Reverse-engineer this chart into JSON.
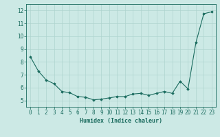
{
  "x": [
    0,
    1,
    2,
    3,
    4,
    5,
    6,
    7,
    8,
    9,
    10,
    11,
    12,
    13,
    14,
    15,
    16,
    17,
    18,
    19,
    20,
    21,
    22,
    23
  ],
  "y": [
    8.4,
    7.3,
    6.6,
    6.3,
    5.7,
    5.6,
    5.3,
    5.25,
    5.05,
    5.1,
    5.2,
    5.3,
    5.3,
    5.5,
    5.55,
    5.4,
    5.55,
    5.7,
    5.55,
    6.5,
    5.9,
    9.5,
    11.75,
    11.9
  ],
  "line_color": "#1a6b5e",
  "marker": "D",
  "marker_size": 1.8,
  "bg_color": "#cce9e5",
  "grid_color": "#aed4cf",
  "axis_color": "#1a6b5e",
  "xlabel": "Humidex (Indice chaleur)",
  "xlim": [
    -0.5,
    23.5
  ],
  "ylim": [
    4.5,
    12.5
  ],
  "yticks": [
    5,
    6,
    7,
    8,
    9,
    10,
    11,
    12
  ],
  "xticks": [
    0,
    1,
    2,
    3,
    4,
    5,
    6,
    7,
    8,
    9,
    10,
    11,
    12,
    13,
    14,
    15,
    16,
    17,
    18,
    19,
    20,
    21,
    22,
    23
  ],
  "xlabel_fontsize": 6.0,
  "tick_fontsize": 5.5,
  "linewidth": 0.8
}
